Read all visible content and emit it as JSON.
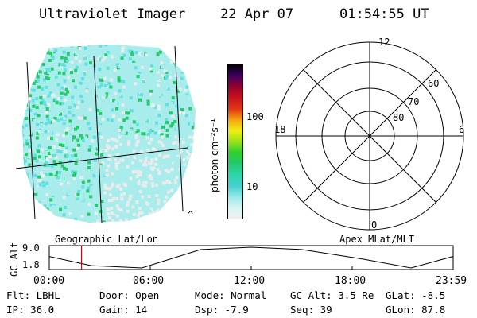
{
  "header": {
    "title": "Ultraviolet Imager",
    "date": "22 Apr 07",
    "time": "01:54:55 UT"
  },
  "colorbar": {
    "unit_label": "photon cm⁻²s⁻¹",
    "ticks": [
      "100",
      "10"
    ],
    "scale": "log",
    "colors": [
      "#f0f0f0",
      "#d6f4f4",
      "#9ae8e8",
      "#44d0d0",
      "#2cd6a6",
      "#22c96a",
      "#2ed02e",
      "#9be21a",
      "#f1ee12",
      "#f5a40f",
      "#e23814",
      "#c40f1d",
      "#8f0032",
      "#3a0060",
      "#000000"
    ]
  },
  "image_panel": {
    "caption": "Geographic Lat/Lon",
    "corner_mark": "^",
    "palette": {
      "low": "#e8ecec",
      "mid": "#a8ecec",
      "cyan": "#60e0e0",
      "green": "#22cc66"
    }
  },
  "polar_panel": {
    "caption": "Apex MLat/MLT",
    "mlt_labels": [
      "12",
      "18",
      "6",
      "0"
    ],
    "mlat_labels": [
      "60",
      "70",
      "80"
    ]
  },
  "altitude_plot": {
    "ylabel": "GC Alt",
    "ytick_labels": [
      "9.0",
      "1.8"
    ],
    "x_labels": [
      "00:00",
      "06:00",
      "12:00",
      "18:00",
      "23:59"
    ],
    "current_time_marker_color": "#cc0000",
    "orbit_altitude": {
      "units": "Re",
      "x_hours": [
        0,
        2.5,
        5.5,
        9,
        12,
        15,
        18.5,
        21.5,
        23.98
      ],
      "y": [
        5.8,
        2.6,
        1.8,
        8.2,
        9.0,
        8.2,
        5.0,
        1.8,
        5.8
      ]
    },
    "current_time_hours": 1.915
  },
  "status": {
    "row1": {
      "flt": "Flt: LBHL",
      "door": "Door: Open",
      "mode": "Mode: Normal",
      "gc_alt": "GC Alt: 3.5 Re",
      "glat": "GLat:  -8.5"
    },
    "row2": {
      "ip": "IP: 36.0",
      "gain": "Gain: 14",
      "dsp": "Dsp:   -7.9",
      "seq": "Seq: 39",
      "glon": "GLon:  87.8"
    }
  }
}
